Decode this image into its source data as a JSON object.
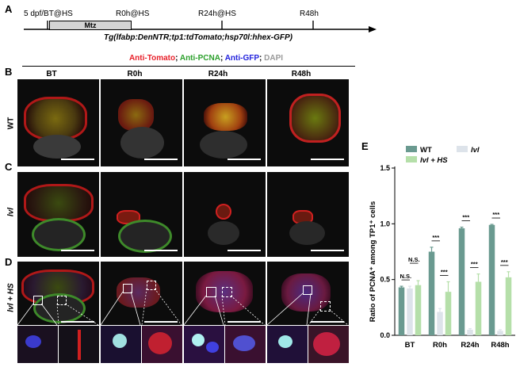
{
  "panels": {
    "A": "A",
    "B": "B",
    "C": "C",
    "D": "D",
    "E": "E"
  },
  "timeline": {
    "labels": [
      "5 dpf/BT@HS",
      "R0h@HS",
      "R24h@HS",
      "R48h"
    ],
    "mtz": "Mtz",
    "genotype": "Tg(lfabp:DenNTR;tp1:tdTomato;hsp70l:hhex-GFP)"
  },
  "stain_legend": {
    "parts": [
      {
        "text": "Anti-Tomato",
        "color": "#e8202a"
      },
      {
        "text": "; ",
        "color": "#000000"
      },
      {
        "text": "Anti-PCNA",
        "color": "#2ca02c"
      },
      {
        "text": "; ",
        "color": "#000000"
      },
      {
        "text": "Anti-GFP",
        "color": "#2222dd"
      },
      {
        "text": "; ",
        "color": "#000000"
      },
      {
        "text": "DAPI",
        "color": "#9a9a9a"
      }
    ]
  },
  "columns": [
    "BT",
    "R0h",
    "R24h",
    "R48h"
  ],
  "rows": [
    "WT",
    "lvl",
    "lvl + HS"
  ],
  "chart_data": {
    "type": "bar",
    "categories": [
      "BT",
      "R0h",
      "R24h",
      "R48h"
    ],
    "series": [
      {
        "name": "WT",
        "color": "#6a9a90",
        "values": [
          0.43,
          0.75,
          0.96,
          0.99
        ],
        "errors": [
          0.01,
          0.04,
          0.01,
          0.005
        ]
      },
      {
        "name": "lvl",
        "color": "#dde3ea",
        "values": [
          0.42,
          0.21,
          0.05,
          0.04
        ],
        "errors": [
          0.02,
          0.03,
          0.01,
          0.01
        ]
      },
      {
        "name": "lvl + HS",
        "color": "#b5dfa9",
        "values": [
          0.45,
          0.39,
          0.48,
          0.52
        ],
        "errors": [
          0.04,
          0.09,
          0.07,
          0.05
        ]
      }
    ],
    "significance": [
      {
        "category": "BT",
        "pairs": [
          "N.S.",
          "N.S."
        ]
      },
      {
        "category": "R0h",
        "pairs": [
          "***",
          "***"
        ]
      },
      {
        "category": "R24h",
        "pairs": [
          "***",
          "***"
        ]
      },
      {
        "category": "R48h",
        "pairs": [
          "***",
          "***"
        ]
      }
    ],
    "ylabel": "Ratio of PCNA⁺ among TP1⁺ cells",
    "yticks": [
      "0.0",
      "0.5",
      "1.0",
      "1.5"
    ],
    "ylim": [
      0,
      1.5
    ],
    "legend_position": "top",
    "legend_labels": [
      "WT",
      "lvl",
      "lvl + HS"
    ]
  }
}
